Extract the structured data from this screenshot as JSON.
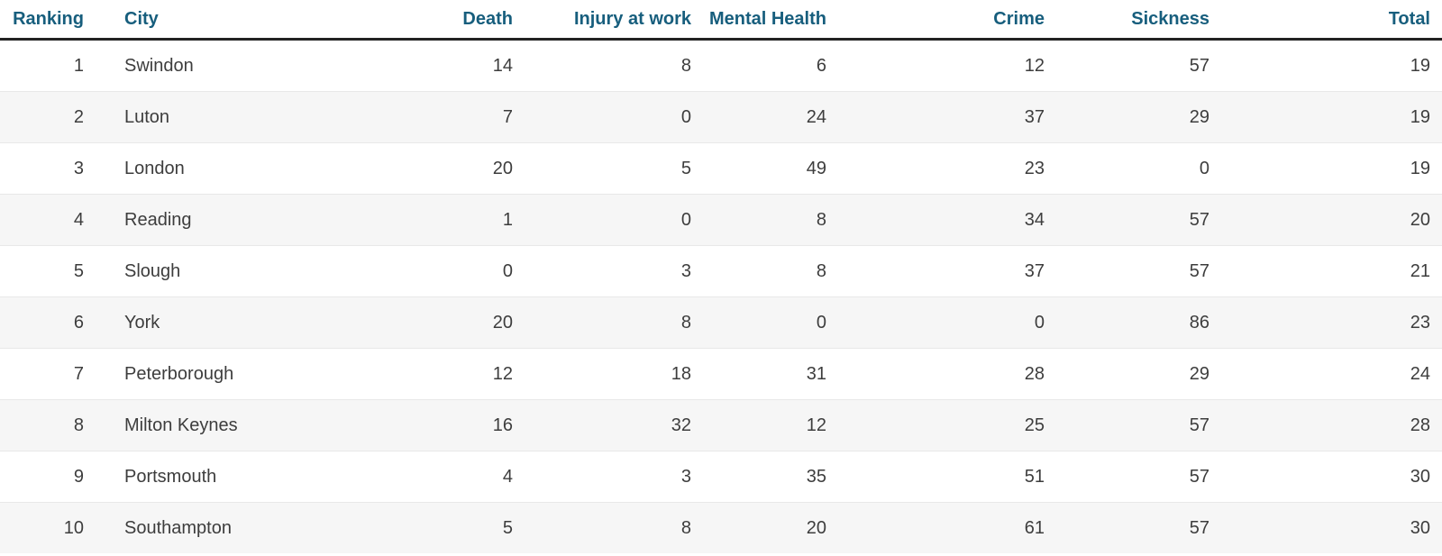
{
  "colors": {
    "header_text": "#175e7d",
    "body_text": "#3d3d3d",
    "row_stripe": "#f6f6f6",
    "row_divider": "#e8e8e8",
    "header_rule": "#222222"
  },
  "table": {
    "columns": [
      {
        "key": "ranking",
        "label": "Ranking"
      },
      {
        "key": "city",
        "label": "City"
      },
      {
        "key": "death",
        "label": "Death"
      },
      {
        "key": "injury",
        "label": "Injury at work"
      },
      {
        "key": "mental",
        "label": "Mental Health"
      },
      {
        "key": "crime",
        "label": "Crime"
      },
      {
        "key": "sickness",
        "label": "Sickness"
      },
      {
        "key": "total",
        "label": "Total"
      }
    ],
    "rows": [
      {
        "ranking": "1",
        "city": "Swindon",
        "death": "14",
        "injury": "8",
        "mental": "6",
        "crime": "12",
        "sickness": "57",
        "total": "19"
      },
      {
        "ranking": "2",
        "city": "Luton",
        "death": "7",
        "injury": "0",
        "mental": "24",
        "crime": "37",
        "sickness": "29",
        "total": "19"
      },
      {
        "ranking": "3",
        "city": "London",
        "death": "20",
        "injury": "5",
        "mental": "49",
        "crime": "23",
        "sickness": "0",
        "total": "19"
      },
      {
        "ranking": "4",
        "city": "Reading",
        "death": "1",
        "injury": "0",
        "mental": "8",
        "crime": "34",
        "sickness": "57",
        "total": "20"
      },
      {
        "ranking": "5",
        "city": "Slough",
        "death": "0",
        "injury": "3",
        "mental": "8",
        "crime": "37",
        "sickness": "57",
        "total": "21"
      },
      {
        "ranking": "6",
        "city": "York",
        "death": "20",
        "injury": "8",
        "mental": "0",
        "crime": "0",
        "sickness": "86",
        "total": "23"
      },
      {
        "ranking": "7",
        "city": "Peterborough",
        "death": "12",
        "injury": "18",
        "mental": "31",
        "crime": "28",
        "sickness": "29",
        "total": "24"
      },
      {
        "ranking": "8",
        "city": "Milton Keynes",
        "death": "16",
        "injury": "32",
        "mental": "12",
        "crime": "25",
        "sickness": "57",
        "total": "28"
      },
      {
        "ranking": "9",
        "city": "Portsmouth",
        "death": "4",
        "injury": "3",
        "mental": "35",
        "crime": "51",
        "sickness": "57",
        "total": "30"
      },
      {
        "ranking": "10",
        "city": "Southampton",
        "death": "5",
        "injury": "8",
        "mental": "20",
        "crime": "61",
        "sickness": "57",
        "total": "30"
      }
    ]
  },
  "chart_data": {
    "type": "table",
    "title": "",
    "columns": [
      "Ranking",
      "City",
      "Death",
      "Injury at work",
      "Mental Health",
      "Crime",
      "Sickness",
      "Total"
    ],
    "rows": [
      [
        1,
        "Swindon",
        14,
        8,
        6,
        12,
        57,
        19
      ],
      [
        2,
        "Luton",
        7,
        0,
        24,
        37,
        29,
        19
      ],
      [
        3,
        "London",
        20,
        5,
        49,
        23,
        0,
        19
      ],
      [
        4,
        "Reading",
        1,
        0,
        8,
        34,
        57,
        20
      ],
      [
        5,
        "Slough",
        0,
        3,
        8,
        37,
        57,
        21
      ],
      [
        6,
        "York",
        20,
        8,
        0,
        0,
        86,
        23
      ],
      [
        7,
        "Peterborough",
        12,
        18,
        31,
        28,
        29,
        24
      ],
      [
        8,
        "Milton Keynes",
        16,
        32,
        12,
        25,
        57,
        28
      ],
      [
        9,
        "Portsmouth",
        4,
        3,
        35,
        51,
        57,
        30
      ],
      [
        10,
        "Southampton",
        5,
        8,
        20,
        61,
        57,
        30
      ]
    ],
    "layout_hints": {
      "zebra_striping": true,
      "numeric_columns_right_aligned": true,
      "grid": "horizontal-dividers-only"
    }
  }
}
